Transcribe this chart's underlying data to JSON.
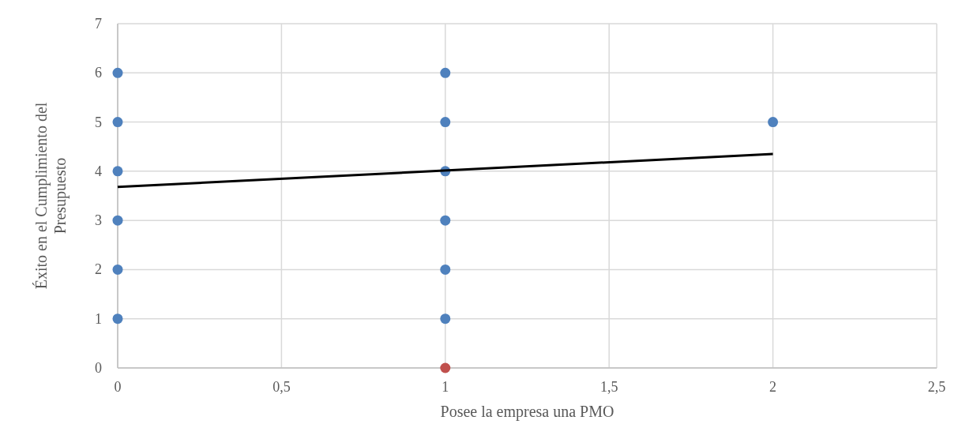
{
  "chart_data": {
    "type": "scatter",
    "xlabel": "Posee la empresa una PMO",
    "ylabel": "Éxito en el Cumplimiento del Presupuesto",
    "xlim": [
      0,
      2.5
    ],
    "xticks": [
      0,
      {
        "value": 0.5,
        "label": "0,5"
      },
      1,
      {
        "value": 1.5,
        "label": "1,5"
      },
      2,
      {
        "value": 2.5,
        "label": "2,5"
      }
    ],
    "ylim": [
      0,
      7
    ],
    "yticks": [
      0,
      1,
      2,
      3,
      4,
      5,
      6,
      7
    ],
    "grid": true,
    "series": [
      {
        "color": "#4f81bd",
        "marker": "circle",
        "x": [
          0,
          0,
          0,
          0,
          0,
          0,
          1,
          1,
          1,
          1,
          1,
          1,
          2
        ],
        "values": [
          1,
          2,
          3,
          4,
          5,
          6,
          1,
          2,
          3,
          4,
          5,
          6,
          5
        ]
      },
      {
        "color": "#c0504d",
        "marker": "circle",
        "x": [
          1
        ],
        "values": [
          0
        ]
      },
      {
        "type": "line",
        "marker": "none",
        "color": "#000000",
        "x": [
          0,
          2
        ],
        "values": [
          3.68,
          4.35
        ]
      }
    ]
  }
}
